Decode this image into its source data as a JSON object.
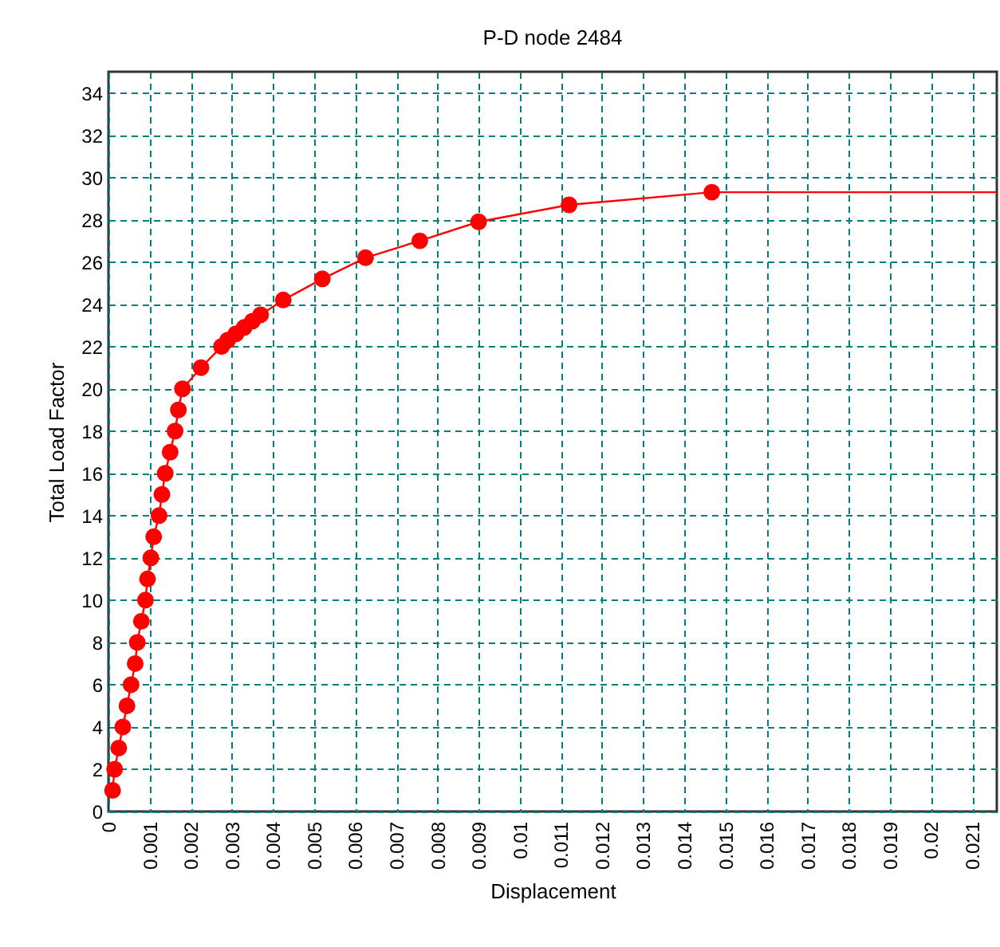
{
  "chart_data": {
    "type": "line",
    "title": "P-D node 2484",
    "xlabel": "Displacement",
    "ylabel": "Total Load Factor",
    "xlim": [
      0,
      0.0216
    ],
    "ylim": [
      0,
      35
    ],
    "xticks": [
      0,
      0.001,
      0.002,
      0.003,
      0.004,
      0.005,
      0.006,
      0.007,
      0.008,
      0.009,
      0.01,
      0.011,
      0.012,
      0.013,
      0.014,
      0.015,
      0.016,
      0.017,
      0.018,
      0.019,
      0.02,
      0.021
    ],
    "yticks": [
      0,
      2,
      4,
      6,
      8,
      10,
      12,
      14,
      16,
      18,
      20,
      22,
      24,
      26,
      28,
      30,
      32,
      34
    ],
    "grid": true,
    "marker": "circle",
    "series": [
      {
        "color": "#ff0000",
        "x": [
          0.0001,
          0.00015,
          0.00025,
          0.00035,
          0.00045,
          0.00055,
          0.00065,
          0.0007,
          0.0008,
          0.0009,
          0.00095,
          0.00103,
          0.0011,
          0.00123,
          0.0013,
          0.00138,
          0.0015,
          0.00162,
          0.0017,
          0.0018,
          0.00225,
          0.00275,
          0.0029,
          0.0031,
          0.0033,
          0.0035,
          0.0037,
          0.00425,
          0.0052,
          0.00625,
          0.00757,
          0.009,
          0.0112,
          0.01467
        ],
        "values": [
          1,
          2,
          3,
          4,
          5,
          6,
          7,
          8,
          9,
          10,
          11,
          12,
          13,
          14,
          15,
          16,
          17,
          18,
          19,
          20,
          21,
          22,
          22.3,
          22.6,
          22.9,
          23.2,
          23.5,
          24.2,
          25.2,
          26.2,
          27,
          27.9,
          28.7,
          29.3
        ]
      },
      {
        "color": "#ff0000",
        "type": "line",
        "marker": "none",
        "x": [
          0.01467,
          0.0216
        ],
        "values": [
          29.3,
          29.3
        ]
      }
    ]
  }
}
